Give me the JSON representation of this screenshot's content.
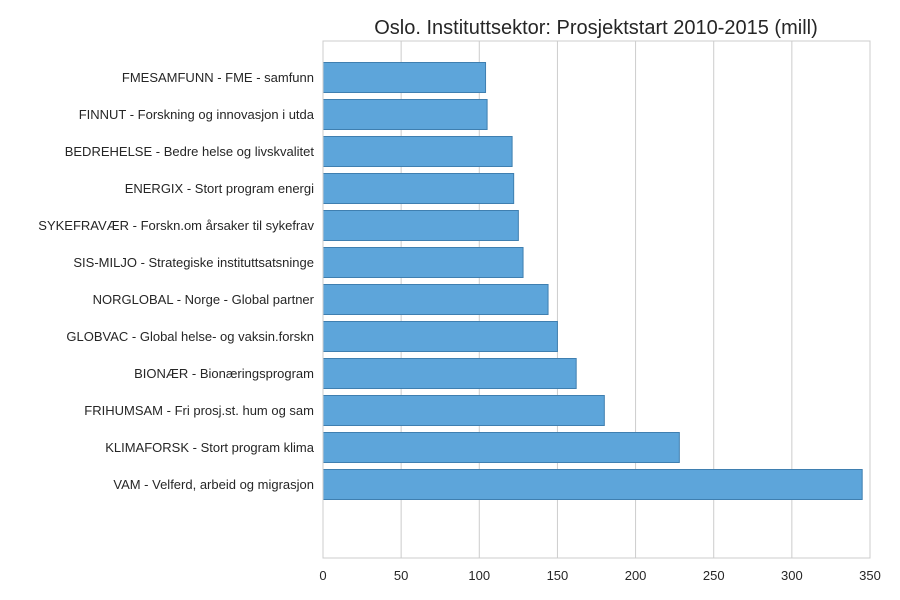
{
  "chart_data": {
    "type": "bar",
    "orientation": "horizontal",
    "title": "Oslo. Instituttsektor: Prosjektstart 2010-2015 (mill)",
    "xlabel": "",
    "ylabel": "",
    "xlim": [
      0,
      350
    ],
    "xticks": [
      0,
      50,
      100,
      150,
      200,
      250,
      300,
      350
    ],
    "grid": true,
    "bar_color": "#5DA5DA",
    "categories": [
      "FMESAMFUNN - FME - samfunn",
      "FINNUT - Forskning og innovasjon i utda",
      "BEDREHELSE - Bedre helse og livskvalitet",
      "ENERGIX - Stort program energi",
      "SYKEFRAVÆR - Forskn.om årsaker til sykefrav",
      "SIS-MILJO - Strategiske instituttsatsninge",
      "NORGLOBAL - Norge - Global partner",
      "GLOBVAC - Global helse- og vaksin.forskn",
      "BIONÆR - Bionæringsprogram",
      "FRIHUMSAM - Fri prosj.st. hum og sam",
      "KLIMAFORSK - Stort program klima",
      "VAM - Velferd, arbeid og migrasjon"
    ],
    "values": [
      104,
      105,
      121,
      122,
      125,
      128,
      144,
      150,
      162,
      180,
      228,
      345
    ]
  }
}
